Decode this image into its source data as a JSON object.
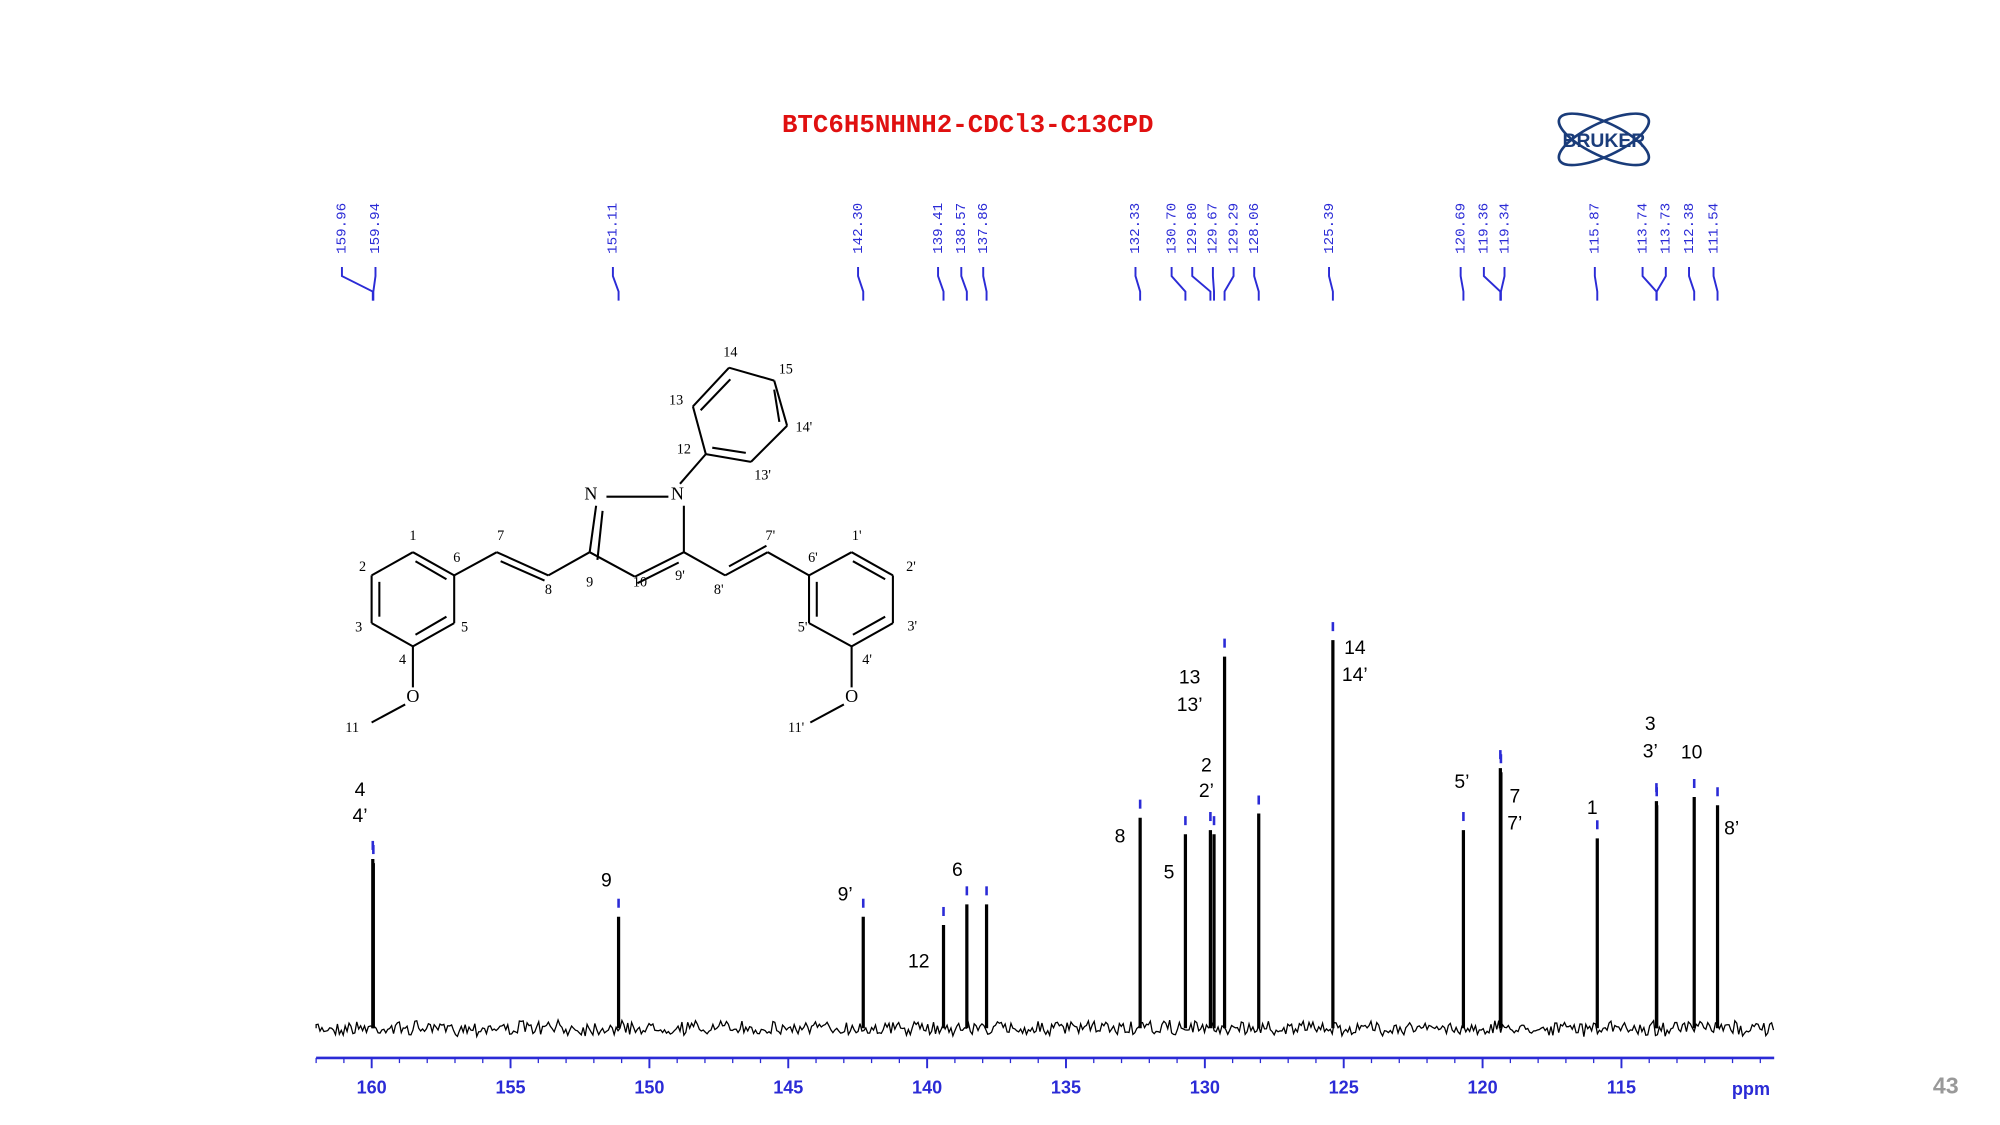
{
  "chart_data": {
    "type": "stem",
    "title": "BTC6H5NHNH2-CDCl3-C13CPD",
    "logo": "BRUKER",
    "page_number": "43",
    "x_label": "ppm",
    "x": [
      159.96,
      159.94,
      151.11,
      142.3,
      139.41,
      138.57,
      137.86,
      132.33,
      130.7,
      129.8,
      129.67,
      129.29,
      128.06,
      125.39,
      120.69,
      119.36,
      119.34,
      115.87,
      113.74,
      113.73,
      112.38,
      111.54
    ],
    "x_labels": [
      "159.96",
      "159.94",
      "151.11",
      "142.30",
      "139.41",
      "138.57",
      "137.86",
      "132.33",
      "130.70",
      "129.80",
      "129.67",
      "129.29",
      "128.06",
      "125.39",
      "120.69",
      "119.36",
      "119.34",
      "115.87",
      "113.74",
      "113.73",
      "112.38",
      "111.54"
    ],
    "values": [
      41,
      40,
      27,
      27,
      25,
      30,
      30,
      51,
      47,
      48,
      47,
      90,
      52,
      94,
      48,
      63,
      62,
      46,
      55,
      54,
      56,
      54
    ],
    "color": "#000000",
    "label_color": "#2b2bd6",
    "xlim": [
      162,
      109.5
    ],
    "ylim": [
      0,
      100
    ],
    "xticks": [
      160,
      155,
      150,
      145,
      140,
      135,
      130,
      125,
      120,
      115
    ],
    "annotations": [
      "4",
      "4’",
      "9",
      "9’",
      "12",
      "6",
      "8",
      "5",
      "13",
      "13’",
      "2",
      "2’",
      "14",
      "14’",
      "5’",
      "7",
      "7’",
      "1",
      "3",
      "3’",
      "10",
      "8’"
    ],
    "structure_labels": [
      "1",
      "2",
      "3",
      "4",
      "5",
      "6",
      "7",
      "8",
      "9",
      "10",
      "11",
      "N",
      "N",
      "O",
      "12",
      "13",
      "14",
      "15",
      "14'",
      "13'",
      "9'",
      "8'",
      "7'",
      "6'",
      "1'",
      "2'",
      "3'",
      "4'",
      "5'",
      "O",
      "11'"
    ]
  }
}
